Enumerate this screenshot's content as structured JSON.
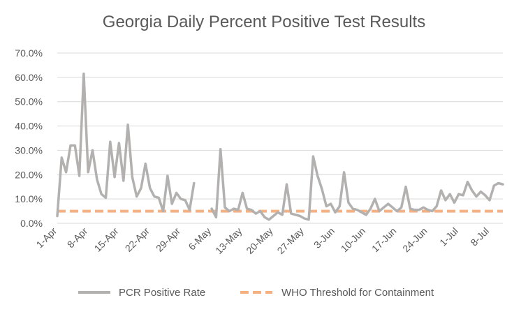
{
  "chart_data": {
    "type": "line",
    "title": "Georgia Daily Percent Positive Test Results",
    "xlabel": "",
    "ylabel": "",
    "ylim": [
      0,
      70
    ],
    "y_ticks": [
      "0.0%",
      "10.0%",
      "20.0%",
      "30.0%",
      "40.0%",
      "50.0%",
      "60.0%",
      "70.0%"
    ],
    "x_tick_labels": [
      "1-Apr",
      "8-Apr",
      "15-Apr",
      "22-Apr",
      "29-Apr",
      "6-May",
      "13-May",
      "20-May",
      "27-May",
      "3-Jun",
      "10-Jun",
      "17-Jun",
      "24-Jun",
      "1-Jul",
      "8-Jul"
    ],
    "grid": "horizontal",
    "legend_position": "bottom",
    "colors": {
      "pcr": "#b3b0b0",
      "who": "#f4b183",
      "grid": "#d9d9d9",
      "text": "#595959"
    },
    "series": [
      {
        "name": "PCR Positive Rate",
        "values": [
          3,
          27,
          21,
          32,
          32,
          19.5,
          61.5,
          21,
          30,
          18,
          12,
          10.5,
          33.5,
          19,
          33,
          17.5,
          40.5,
          19,
          11,
          14.5,
          24.5,
          14.5,
          11,
          10.5,
          5,
          19.5,
          8,
          12.5,
          10,
          9.5,
          5.5,
          16.5,
          null,
          null,
          null,
          6,
          2.5,
          30.5,
          6.5,
          5,
          6,
          5.5,
          12.5,
          6,
          5.5,
          4,
          5,
          2.5,
          1.5,
          3,
          4.5,
          3.5,
          16,
          4,
          3.5,
          3,
          2,
          1.5,
          27.5,
          19.5,
          14,
          7,
          8,
          4.5,
          7,
          21,
          8.5,
          6,
          5.5,
          4.5,
          3.5,
          6,
          10,
          5,
          6.5,
          8,
          6.5,
          5,
          6.5,
          15,
          6,
          5.5,
          5.5,
          6.5,
          5.5,
          5,
          7,
          13.5,
          9.5,
          12,
          8.5,
          12,
          11.5,
          17,
          13.5,
          11,
          13,
          11.5,
          9.5,
          15.5,
          16.5,
          16
        ]
      },
      {
        "name": "WHO Threshold for Containment",
        "values": [
          5,
          5
        ]
      }
    ]
  }
}
